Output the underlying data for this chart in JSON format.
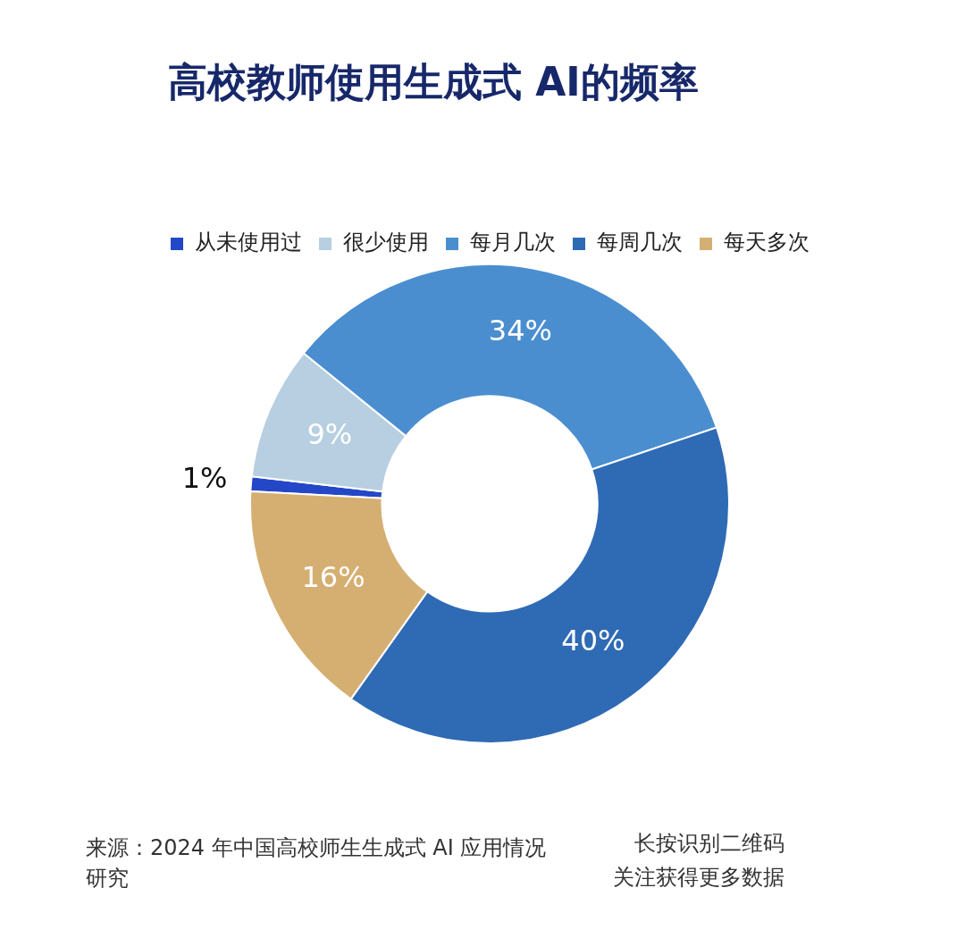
{
  "chart_data": {
    "type": "donut",
    "title": "高校教师使用生成式 AI的频率",
    "categories": [
      "从未使用过",
      "很少使用",
      "每月几次",
      "每周几次",
      "每天多次"
    ],
    "values": [
      1,
      9,
      34,
      40,
      16
    ],
    "colors": [
      "#2447c8",
      "#b7cfe0",
      "#4a8ed0",
      "#2f6ab4",
      "#d5af72"
    ],
    "value_labels": [
      "1%",
      "9%",
      "34%",
      "40%",
      "16%"
    ],
    "legend": "top",
    "annotations": [
      "来源：2024 年中国高校师生生成式 AI 应用情况研究",
      "长按识别二维码",
      "关注获得更多数据"
    ]
  }
}
